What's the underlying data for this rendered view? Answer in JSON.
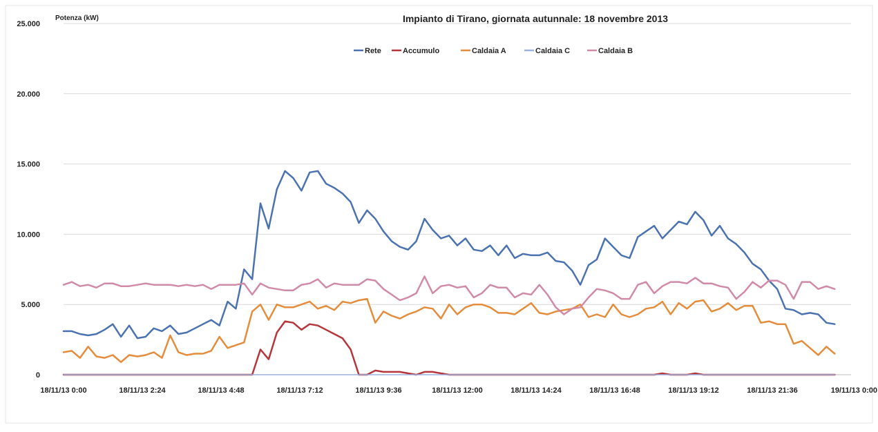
{
  "chart_data": {
    "type": "line",
    "title": "Impianto di Tirano, giornata autunnale: 18 novembre 2013",
    "ylabel": "Potenza (kW)",
    "xlabel": "",
    "ylim": [
      0,
      25000
    ],
    "yticks": [
      0,
      5000,
      10000,
      15000,
      20000,
      25000
    ],
    "ytick_labels": [
      "0",
      "5.000",
      "10.000",
      "15.000",
      "20.000",
      "25.000"
    ],
    "xticks": [
      "18/11/13 0:00",
      "18/11/13 2:24",
      "18/11/13 4:48",
      "18/11/13 7:12",
      "18/11/13 9:36",
      "18/11/13 12:00",
      "18/11/13 14:24",
      "18/11/13 16:48",
      "18/11/13 19:12",
      "18/11/13 21:36",
      "19/11/13 0:00"
    ],
    "x_samples_per_day": 96,
    "grid": true,
    "legend_position": "top-center",
    "series": [
      {
        "name": "Rete",
        "color": "#4a72b0",
        "values": [
          3100,
          3100,
          2900,
          2800,
          2900,
          3200,
          3600,
          2700,
          3500,
          2600,
          2700,
          3300,
          3100,
          3500,
          2900,
          3000,
          3300,
          3600,
          3900,
          3500,
          5200,
          4700,
          7500,
          6800,
          12200,
          10400,
          13200,
          14500,
          14000,
          13100,
          14400,
          14500,
          13600,
          13300,
          12900,
          12300,
          10800,
          11700,
          11100,
          10200,
          9500,
          9100,
          8900,
          9500,
          11100,
          10300,
          9700,
          9900,
          9200,
          9700,
          8900,
          8800,
          9200,
          8500,
          9200,
          8300,
          8600,
          8500,
          8500,
          8700,
          8100,
          8000,
          7400,
          6400,
          7800,
          8200,
          9700,
          9100,
          8500,
          8300,
          9800,
          10200,
          10600,
          9700,
          10300,
          10900,
          10700,
          11600,
          11000,
          9900,
          10600,
          9700,
          9300,
          8700,
          7900,
          7500,
          6700,
          6100,
          4700,
          4600,
          4300,
          4400,
          4300,
          3700,
          3600
        ]
      },
      {
        "name": "Accumulo",
        "color": "#b5353a",
        "values": [
          0,
          0,
          0,
          0,
          0,
          0,
          0,
          0,
          0,
          0,
          0,
          0,
          0,
          0,
          0,
          0,
          0,
          0,
          0,
          0,
          0,
          0,
          0,
          0,
          1800,
          1100,
          3000,
          3800,
          3700,
          3200,
          3600,
          3500,
          3200,
          2900,
          2600,
          1800,
          0,
          0,
          300,
          200,
          200,
          200,
          100,
          0,
          200,
          200,
          100,
          0,
          0,
          0,
          0,
          0,
          0,
          0,
          0,
          0,
          0,
          0,
          0,
          0,
          0,
          0,
          0,
          0,
          0,
          0,
          0,
          0,
          0,
          0,
          0,
          0,
          0,
          100,
          0,
          0,
          0,
          100,
          0,
          0,
          0,
          0,
          0,
          0,
          0,
          0,
          0,
          0,
          0,
          0,
          0,
          0,
          0,
          0,
          0
        ]
      },
      {
        "name": "Caldaia A",
        "color": "#e48c3a",
        "values": [
          1600,
          1700,
          1200,
          2000,
          1300,
          1200,
          1400,
          900,
          1400,
          1300,
          1400,
          1600,
          1200,
          2800,
          1600,
          1400,
          1500,
          1500,
          1700,
          2700,
          1900,
          2100,
          2300,
          4500,
          5000,
          3900,
          5000,
          4800,
          4800,
          5000,
          5200,
          4700,
          4900,
          4600,
          5200,
          5100,
          5300,
          5400,
          3700,
          4500,
          4200,
          4000,
          4300,
          4500,
          4800,
          4700,
          4000,
          5000,
          4300,
          4800,
          5000,
          5000,
          4800,
          4400,
          4400,
          4300,
          4700,
          5100,
          4400,
          4300,
          4500,
          4600,
          4700,
          5000,
          4100,
          4300,
          4100,
          5000,
          4300,
          4100,
          4300,
          4700,
          4800,
          5200,
          4300,
          5100,
          4700,
          5200,
          5300,
          4500,
          4700,
          5100,
          4600,
          4900,
          4900,
          3700,
          3800,
          3600,
          3600,
          2200,
          2400,
          1900,
          1400,
          2000,
          1500
        ]
      },
      {
        "name": "Caldaia C",
        "color": "#9ab0de",
        "values": [
          0,
          0,
          0,
          0,
          0,
          0,
          0,
          0,
          0,
          0,
          0,
          0,
          0,
          0,
          0,
          0,
          0,
          0,
          0,
          0,
          0,
          0,
          0,
          0,
          0,
          0,
          0,
          0,
          0,
          0,
          0,
          0,
          0,
          0,
          0,
          0,
          0,
          0,
          0,
          0,
          0,
          0,
          0,
          0,
          0,
          0,
          0,
          0,
          0,
          0,
          0,
          0,
          0,
          0,
          0,
          0,
          0,
          0,
          0,
          0,
          0,
          0,
          0,
          0,
          0,
          0,
          0,
          0,
          0,
          0,
          0,
          0,
          0,
          0,
          0,
          0,
          0,
          0,
          0,
          0,
          0,
          0,
          0,
          0,
          0,
          0,
          0,
          0,
          0,
          0,
          0,
          0,
          0,
          0,
          0
        ]
      },
      {
        "name": "Caldaia B",
        "color": "#d08aa8",
        "values": [
          6400,
          6600,
          6300,
          6400,
          6200,
          6500,
          6500,
          6300,
          6300,
          6400,
          6500,
          6400,
          6400,
          6400,
          6300,
          6400,
          6300,
          6400,
          6100,
          6400,
          6400,
          6400,
          6500,
          5700,
          6500,
          6200,
          6100,
          6000,
          6000,
          6400,
          6500,
          6800,
          6200,
          6500,
          6400,
          6400,
          6400,
          6800,
          6700,
          6100,
          5700,
          5300,
          5500,
          5800,
          7000,
          5800,
          6300,
          6400,
          6200,
          6300,
          5500,
          5800,
          6400,
          6200,
          6200,
          5500,
          5800,
          5700,
          6400,
          5700,
          4800,
          4300,
          4700,
          4800,
          5500,
          6100,
          6000,
          5800,
          5400,
          5400,
          6400,
          6600,
          5800,
          6300,
          6600,
          6600,
          6500,
          6900,
          6500,
          6500,
          6300,
          6200,
          5400,
          5900,
          6600,
          6200,
          6700,
          6700,
          6400,
          5400,
          6600,
          6600,
          6100,
          6300,
          6100
        ]
      }
    ]
  }
}
